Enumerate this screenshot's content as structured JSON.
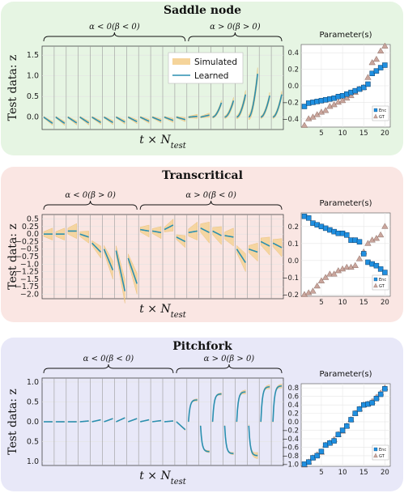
{
  "legend": {
    "simulated": "Simulated",
    "learned": "Learned"
  },
  "colors": {
    "band": "#f5d49a",
    "bandEdge": "#e6b660",
    "learned": "#2a8fb0",
    "enc": "#1f8fe0",
    "gt": "#c9a59c",
    "divider": "#9a9a9a"
  },
  "chart_data": [
    {
      "type": "line",
      "panel": "saddle",
      "bg": "#e6f5e3",
      "title": "Saddle node",
      "ylabel": "Test data: z",
      "xlabel": "t × N_test",
      "yticks": [
        1.5,
        1.0,
        0.5,
        0.0
      ],
      "ylim": [
        -0.3,
        1.72
      ],
      "brace_left": "α < 0(β < 0)",
      "brace_right": "α > 0(β > 0)",
      "segments": [
        {
          "z0": 0.0,
          "z1": -0.15,
          "band": 0.05
        },
        {
          "z0": 0.0,
          "z1": -0.15,
          "band": 0.05
        },
        {
          "z0": 0.0,
          "z1": -0.14,
          "band": 0.05
        },
        {
          "z0": 0.0,
          "z1": -0.14,
          "band": 0.05
        },
        {
          "z0": 0.0,
          "z1": -0.13,
          "band": 0.05
        },
        {
          "z0": 0.0,
          "z1": -0.13,
          "band": 0.05
        },
        {
          "z0": 0.0,
          "z1": -0.12,
          "band": 0.05
        },
        {
          "z0": 0.0,
          "z1": -0.11,
          "band": 0.05
        },
        {
          "z0": 0.0,
          "z1": -0.1,
          "band": 0.05
        },
        {
          "z0": 0.0,
          "z1": -0.09,
          "band": 0.05
        },
        {
          "z0": 0.0,
          "z1": -0.08,
          "band": 0.05
        },
        {
          "z0": 0.0,
          "z1": -0.06,
          "band": 0.05
        },
        {
          "z0": 0.0,
          "z1": 0.02,
          "band": 0.05
        },
        {
          "z0": 0.0,
          "z1": 0.05,
          "band": 0.05
        },
        {
          "z0": 0.0,
          "z1": 0.35,
          "band": 0.06
        },
        {
          "z0": 0.0,
          "z1": 0.4,
          "band": 0.08
        },
        {
          "z0": 0.0,
          "z1": 0.55,
          "band": 0.1
        },
        {
          "z0": 0.0,
          "z1": 1.05,
          "band": 0.15
        },
        {
          "z0": 0.0,
          "z1": 0.52,
          "band": 0.08
        },
        {
          "z0": 0.0,
          "z1": 0.55,
          "band": 0.08
        }
      ],
      "params": {
        "title": "Parameter(s)",
        "yticks": [
          0.4,
          0.2,
          0.0,
          -0.2,
          -0.4
        ],
        "ylim": [
          -0.5,
          0.5
        ],
        "xticks": [
          5,
          10,
          15,
          20
        ],
        "legend_enc": "Enc",
        "legend_gt": "GT",
        "enc": [
          -0.25,
          -0.21,
          -0.2,
          -0.19,
          -0.18,
          -0.17,
          -0.16,
          -0.15,
          -0.13,
          -0.12,
          -0.1,
          -0.08,
          -0.06,
          -0.04,
          -0.02,
          0.02,
          0.15,
          0.18,
          0.22,
          0.25
        ],
        "gt": [
          -0.48,
          -0.4,
          -0.38,
          -0.35,
          -0.32,
          -0.3,
          -0.25,
          -0.23,
          -0.2,
          -0.18,
          -0.15,
          -0.12,
          -0.08,
          -0.04,
          -0.02,
          0.1,
          0.28,
          0.32,
          0.42,
          0.48
        ]
      }
    },
    {
      "type": "line",
      "panel": "transcritical",
      "bg": "#fae6e3",
      "title": "Transcritical",
      "ylabel": "Test data: z",
      "xlabel": "t × N_test",
      "yticks": [
        0.5,
        0.25,
        0.0,
        -0.25,
        -0.5,
        -0.75,
        -1.0,
        -1.25,
        -1.5,
        -1.75,
        -2.0
      ],
      "ylim": [
        -2.15,
        0.65
      ],
      "brace_left": "α < 0(β > 0)",
      "brace_right": "α > 0(β < 0)",
      "segments": [
        {
          "z0": 0.0,
          "z1": 0.0,
          "band": 0.2
        },
        {
          "z0": 0.0,
          "z1": 0.0,
          "band": 0.2
        },
        {
          "z0": 0.1,
          "z1": 0.1,
          "band": 0.25
        },
        {
          "z0": 0.0,
          "z1": -0.1,
          "band": 0.2
        },
        {
          "z0": -0.3,
          "z1": -0.6,
          "band": 0.2
        },
        {
          "z0": -0.5,
          "z1": -1.2,
          "band": 0.3
        },
        {
          "z0": -0.55,
          "z1": -1.9,
          "band": 0.4
        },
        {
          "z0": -0.8,
          "z1": -1.65,
          "band": 0.35
        },
        {
          "z0": 0.15,
          "z1": 0.1,
          "band": 0.2
        },
        {
          "z0": 0.1,
          "z1": 0.05,
          "band": 0.2
        },
        {
          "z0": 0.15,
          "z1": 0.3,
          "band": 0.2
        },
        {
          "z0": -0.1,
          "z1": -0.25,
          "band": 0.2
        },
        {
          "z0": 0.05,
          "z1": 0.1,
          "band": 0.3
        },
        {
          "z0": 0.2,
          "z1": 0.05,
          "band": 0.35
        },
        {
          "z0": 0.1,
          "z1": -0.05,
          "band": 0.3
        },
        {
          "z0": -0.05,
          "z1": -0.1,
          "band": 0.3
        },
        {
          "z0": -0.5,
          "z1": -0.95,
          "band": 0.3
        },
        {
          "z0": -0.5,
          "z1": -0.6,
          "band": 0.3
        },
        {
          "z0": -0.25,
          "z1": -0.4,
          "band": 0.3
        },
        {
          "z0": -0.3,
          "z1": -0.45,
          "band": 0.3
        }
      ],
      "params": {
        "title": "Parameter(s)",
        "yticks": [
          0.2,
          0.1,
          0.0,
          -0.1,
          -0.2
        ],
        "ylim": [
          -0.21,
          0.28
        ],
        "xticks": [
          5,
          10,
          15,
          20
        ],
        "legend_enc": "Enc",
        "legend_gt": "GT",
        "enc": [
          0.26,
          0.25,
          0.22,
          0.21,
          0.2,
          0.19,
          0.18,
          0.17,
          0.16,
          0.16,
          0.15,
          0.12,
          0.12,
          0.11,
          0.04,
          -0.01,
          -0.02,
          -0.03,
          -0.05,
          -0.07
        ],
        "gt": [
          -0.2,
          -0.19,
          -0.18,
          -0.15,
          -0.12,
          -0.1,
          -0.08,
          -0.08,
          -0.06,
          -0.05,
          -0.04,
          -0.04,
          -0.03,
          0.01,
          0.05,
          0.1,
          0.12,
          0.13,
          0.15,
          0.2
        ]
      }
    },
    {
      "type": "line",
      "panel": "pitchfork",
      "bg": "#e8e8f8",
      "title": "Pitchfork",
      "ylabel": "Test data: z",
      "xlabel": "t × N_test",
      "yticks": [
        1.0,
        0.5,
        0.0,
        0.5,
        1.0
      ],
      "ylim": [
        -1.1,
        1.1
      ],
      "brace_left": "α < 0(β < 0)",
      "brace_right": "α > 0(β > 0)",
      "segments": [
        {
          "z0": 0.0,
          "z1": 0.0,
          "band": 0.01
        },
        {
          "z0": 0.0,
          "z1": 0.0,
          "band": 0.01
        },
        {
          "z0": 0.0,
          "z1": 0.0,
          "band": 0.01
        },
        {
          "z0": 0.0,
          "z1": 0.02,
          "band": 0.01
        },
        {
          "z0": 0.0,
          "z1": 0.05,
          "band": 0.01
        },
        {
          "z0": 0.0,
          "z1": 0.08,
          "band": 0.01
        },
        {
          "z0": 0.0,
          "z1": 0.1,
          "band": 0.01
        },
        {
          "z0": 0.0,
          "z1": 0.08,
          "band": 0.01
        },
        {
          "z0": 0.0,
          "z1": 0.05,
          "band": 0.01
        },
        {
          "z0": 0.0,
          "z1": 0.03,
          "band": 0.01
        },
        {
          "z0": 0.0,
          "z1": 0.02,
          "band": 0.01
        },
        {
          "z0": 0.0,
          "z1": -0.2,
          "band": 0.02
        },
        {
          "z0": 0.0,
          "z1": 0.55,
          "band": 0.03
        },
        {
          "z0": -0.1,
          "z1": -0.75,
          "band": 0.03
        },
        {
          "z0": 0.0,
          "z1": 0.7,
          "band": 0.03
        },
        {
          "z0": -0.1,
          "z1": -0.8,
          "band": 0.03
        },
        {
          "z0": 0.0,
          "z1": 0.75,
          "band": 0.05
        },
        {
          "z0": -0.1,
          "z1": -0.85,
          "band": 0.08
        },
        {
          "z0": 0.0,
          "z1": 0.88,
          "band": 0.05
        },
        {
          "z0": 0.0,
          "z1": 0.9,
          "band": 0.05
        }
      ],
      "params": {
        "title": "Parameter(s)",
        "yticks": [
          0.8,
          0.6,
          0.4,
          0.2,
          0.0,
          -0.2,
          -0.4,
          -0.6,
          -0.8,
          -1.0
        ],
        "ylim": [
          -1.05,
          0.9
        ],
        "xticks": [
          5,
          10,
          15,
          20
        ],
        "legend_enc": "Enc",
        "legend_gt": "GT",
        "enc": [
          -1.0,
          -0.95,
          -0.85,
          -0.8,
          -0.7,
          -0.55,
          -0.5,
          -0.45,
          -0.3,
          -0.2,
          -0.1,
          0.05,
          0.2,
          0.3,
          0.4,
          0.42,
          0.45,
          0.55,
          0.65,
          0.78
        ],
        "gt": [
          -1.02,
          -0.95,
          -0.85,
          -0.78,
          -0.72,
          -0.55,
          -0.5,
          -0.42,
          -0.3,
          -0.22,
          -0.1,
          0.05,
          0.2,
          0.3,
          0.4,
          0.42,
          0.48,
          0.58,
          0.68,
          0.8
        ]
      }
    }
  ]
}
